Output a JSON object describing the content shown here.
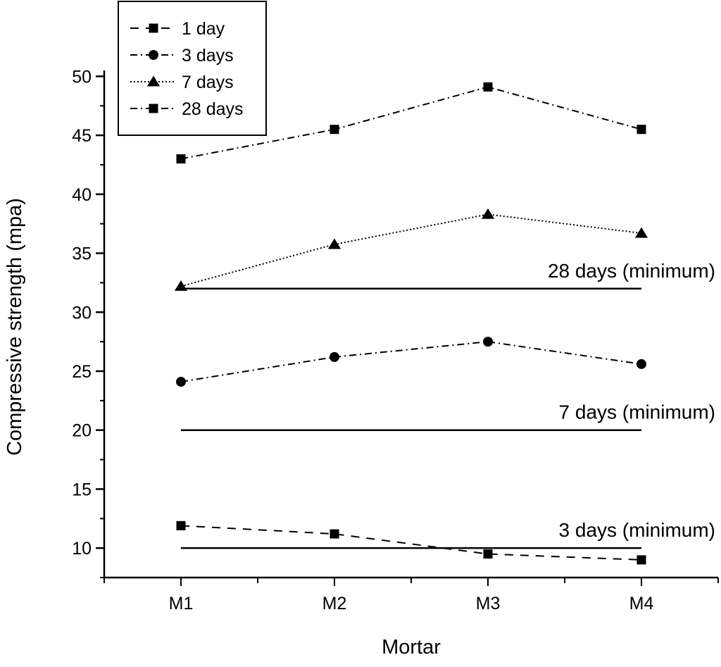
{
  "chart_data": {
    "type": "line",
    "title": "",
    "xlabel": "Mortar",
    "ylabel": "Compressive strength (mpa)",
    "categories": [
      "M1",
      "M2",
      "M3",
      "M4"
    ],
    "xlim": [
      0.5,
      4.5
    ],
    "ylim": [
      7.5,
      50.5
    ],
    "yticks": [
      10,
      15,
      20,
      25,
      30,
      35,
      40,
      45,
      50
    ],
    "grid": false,
    "legend_position": "top-left",
    "series": [
      {
        "name": "1 day",
        "marker": "square",
        "dash": "dashed",
        "values": [
          11.9,
          11.2,
          9.5,
          9.0
        ]
      },
      {
        "name": "3 days",
        "marker": "circle",
        "dash": "dash-dot",
        "values": [
          24.1,
          26.2,
          27.5,
          25.6
        ]
      },
      {
        "name": "7 days",
        "marker": "triangle",
        "dash": "dotted",
        "values": [
          32.2,
          35.75,
          38.3,
          36.7
        ]
      },
      {
        "name": "28 days",
        "marker": "square",
        "dash": "dash-dot",
        "values": [
          43.0,
          45.5,
          49.1,
          45.5
        ]
      }
    ],
    "reference_lines": [
      {
        "label": "28 days (minimum)",
        "value": 32
      },
      {
        "label": "7 days (minimum)",
        "value": 20
      },
      {
        "label": "3 days (minimum)",
        "value": 10
      }
    ],
    "colors": {
      "line": "#000000"
    }
  }
}
